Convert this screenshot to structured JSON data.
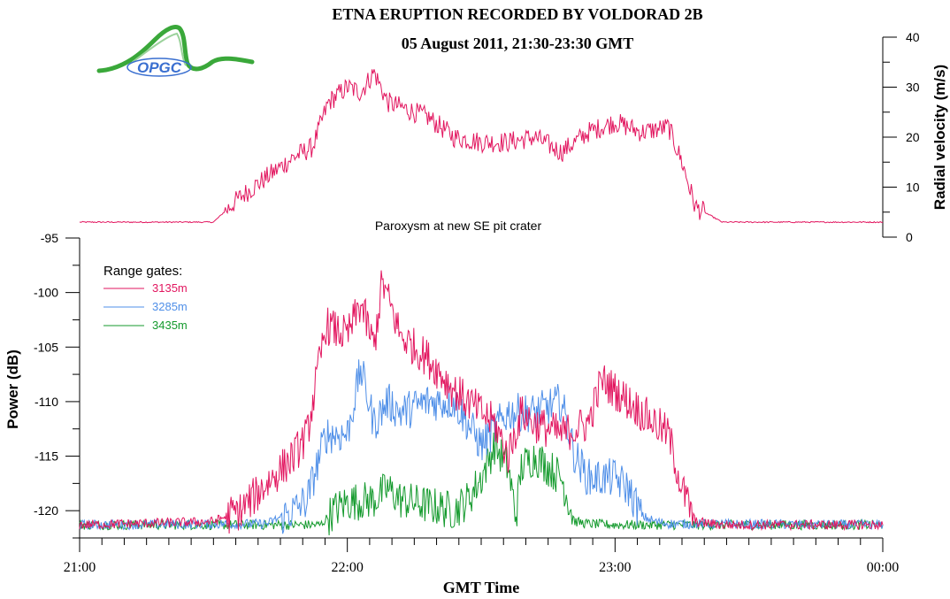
{
  "title_line1": "ETNA ERUPTION RECORDED BY VOLDORAD 2B",
  "title_line2": "05 August 2011, 21:30-23:30 GMT",
  "logo_text": "OPGC",
  "annotation": "Paroxysm at new SE pit crater",
  "colors": {
    "s3135": "#e2165f",
    "s3285": "#4f8fe8",
    "s3435": "#149a2d",
    "logo_green": "#3aa83a",
    "logo_blue": "#3a6fd0"
  },
  "chart_data": [
    {
      "type": "line",
      "name": "radial-velocity",
      "ylabel": "Radial velocity (m/s)",
      "ylim": [
        0,
        40
      ],
      "yticks": [
        "0",
        "10",
        "20",
        "30",
        "40"
      ],
      "y_axis_side": "right",
      "xlim_hours": [
        21,
        24
      ],
      "series": [
        {
          "name": "3135m",
          "x_hours": [
            21.0,
            21.5,
            21.6,
            21.7,
            21.8,
            21.87,
            21.93,
            22.0,
            22.05,
            22.1,
            22.15,
            22.2,
            22.3,
            22.4,
            22.5,
            22.6,
            22.7,
            22.8,
            22.9,
            23.0,
            23.1,
            23.2,
            23.25,
            23.3,
            23.4,
            23.5,
            24.0
          ],
          "values": [
            3,
            3,
            8,
            12,
            16,
            18,
            27,
            30,
            29,
            33,
            27,
            26,
            24,
            20,
            19,
            19,
            20,
            17,
            21,
            23,
            21,
            22,
            15,
            6,
            3,
            3,
            3
          ]
        }
      ]
    },
    {
      "type": "line",
      "name": "power",
      "ylabel": "Power (dB)",
      "xlabel": "GMT Time",
      "ylim": [
        -122.5,
        -95
      ],
      "yticks": [
        "-95",
        "-100",
        "-105",
        "-110",
        "-115",
        "-120"
      ],
      "xlim_hours": [
        21,
        24
      ],
      "xticks": [
        "21:00",
        "22:00",
        "23:00",
        "00:00"
      ],
      "legend_title": "Range gates:",
      "legend_position": "top-left",
      "series": [
        {
          "name": "3135m",
          "x_hours": [
            21.0,
            21.5,
            21.6,
            21.7,
            21.8,
            21.85,
            21.92,
            22.0,
            22.05,
            22.1,
            22.13,
            22.2,
            22.3,
            22.4,
            22.5,
            22.55,
            22.6,
            22.65,
            22.7,
            22.8,
            22.9,
            22.95,
            23.0,
            23.1,
            23.15,
            23.2,
            23.25,
            23.3,
            23.4,
            24.0
          ],
          "values": [
            -121.3,
            -121.0,
            -120.0,
            -117.5,
            -115.0,
            -113.0,
            -103.0,
            -104.0,
            -101.0,
            -105.0,
            -99.0,
            -104.0,
            -106.0,
            -109.0,
            -111.0,
            -112.0,
            -115.0,
            -111.0,
            -112.0,
            -113.0,
            -112.0,
            -108.0,
            -109.0,
            -111.0,
            -112.0,
            -113.0,
            -118.0,
            -121.0,
            -121.3,
            -121.3
          ]
        },
        {
          "name": "3285m",
          "x_hours": [
            21.0,
            21.7,
            21.8,
            21.85,
            21.92,
            22.0,
            22.05,
            22.1,
            22.15,
            22.2,
            22.3,
            22.4,
            22.5,
            22.6,
            22.7,
            22.8,
            22.85,
            22.9,
            23.0,
            23.05,
            23.1,
            23.15,
            23.2,
            24.0
          ],
          "values": [
            -121.3,
            -121.2,
            -120.0,
            -119.0,
            -113.0,
            -113.0,
            -107.0,
            -112.0,
            -110.0,
            -111.0,
            -110.0,
            -110.0,
            -114.0,
            -111.0,
            -111.0,
            -110.0,
            -115.0,
            -117.0,
            -117.0,
            -118.0,
            -120.5,
            -121.0,
            -121.2,
            -121.3
          ]
        },
        {
          "name": "3435m",
          "x_hours": [
            21.0,
            21.9,
            21.95,
            22.0,
            22.1,
            22.15,
            22.2,
            22.3,
            22.4,
            22.45,
            22.5,
            22.55,
            22.6,
            22.63,
            22.65,
            22.7,
            22.8,
            22.85,
            22.9,
            23.0,
            24.0
          ],
          "values": [
            -121.3,
            -121.3,
            -120.0,
            -119.2,
            -119.0,
            -118.0,
            -119.0,
            -119.5,
            -120.0,
            -119.0,
            -117.0,
            -114.0,
            -116.0,
            -120.5,
            -116.0,
            -115.0,
            -117.0,
            -121.0,
            -121.2,
            -121.3,
            -121.3
          ]
        }
      ]
    }
  ]
}
